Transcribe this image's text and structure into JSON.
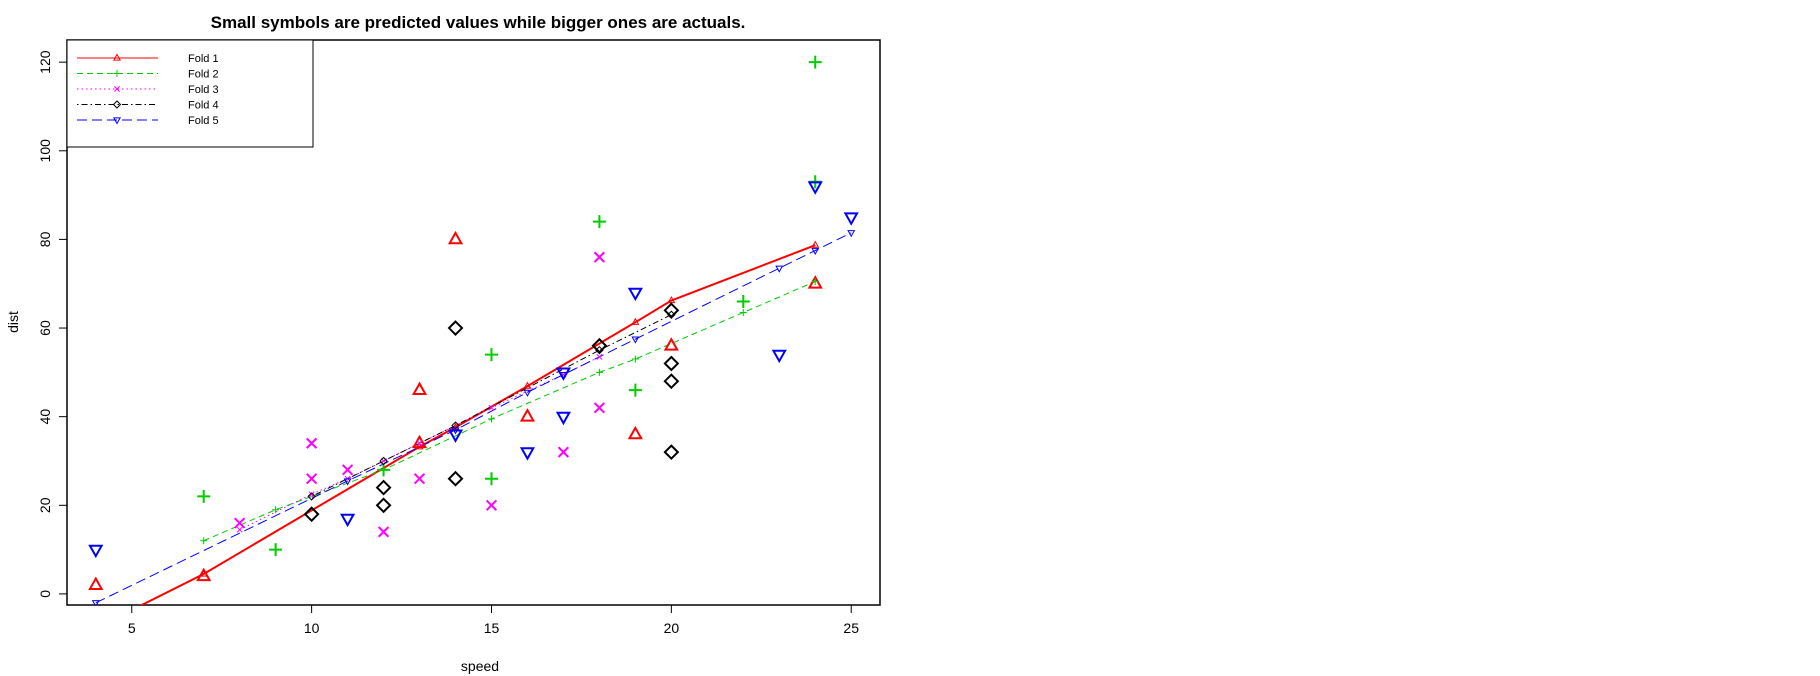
{
  "chart_data": {
    "type": "scatter",
    "title": "Small symbols are predicted values while bigger ones are actuals.",
    "xlabel": "speed",
    "ylabel": "dist",
    "xlim": [
      3.2,
      25.8
    ],
    "ylim": [
      -2.5,
      125
    ],
    "x_ticks": [
      5,
      10,
      15,
      20,
      25
    ],
    "y_ticks": [
      0,
      20,
      40,
      60,
      80,
      100,
      120
    ],
    "grid": false,
    "legend_position": "top-left",
    "series": [
      {
        "name": "Fold 1",
        "color": "#ff0000",
        "marker": "triangle-up",
        "line": "solid",
        "predicted": [
          [
            4,
            -7.7
          ],
          [
            7,
            4.5
          ],
          [
            13,
            33.2
          ],
          [
            14,
            37.6
          ],
          [
            16,
            46.9
          ],
          [
            19,
            61.3
          ],
          [
            20,
            66.2
          ],
          [
            24,
            78.7
          ]
        ],
        "actual": [
          [
            4,
            2
          ],
          [
            7,
            4
          ],
          [
            13,
            46
          ],
          [
            13,
            34
          ],
          [
            14,
            80
          ],
          [
            16,
            40
          ],
          [
            19,
            36
          ],
          [
            20,
            56
          ],
          [
            24,
            70
          ]
        ]
      },
      {
        "name": "Fold 2",
        "color": "#00cc00",
        "marker": "plus",
        "line": "dashed",
        "predicted": [
          [
            7,
            12
          ],
          [
            9,
            19
          ],
          [
            12,
            28
          ],
          [
            15,
            39.5
          ],
          [
            18,
            50
          ],
          [
            19,
            53
          ],
          [
            22,
            63.5
          ],
          [
            24,
            70.5
          ]
        ],
        "actual": [
          [
            7,
            22
          ],
          [
            9,
            10
          ],
          [
            12,
            28
          ],
          [
            15,
            54
          ],
          [
            15,
            26
          ],
          [
            18,
            84
          ],
          [
            19,
            46
          ],
          [
            22,
            66
          ],
          [
            24,
            120
          ],
          [
            24,
            93
          ]
        ]
      },
      {
        "name": "Fold 3",
        "color": "#ff00ff",
        "marker": "cross",
        "line": "dotted",
        "predicted": [
          [
            8,
            14.5
          ],
          [
            10,
            22.5
          ],
          [
            11,
            26
          ],
          [
            12,
            30
          ],
          [
            13,
            34
          ],
          [
            15,
            42
          ],
          [
            17,
            49.5
          ],
          [
            18,
            53.5
          ]
        ],
        "actual": [
          [
            8,
            16
          ],
          [
            10,
            34
          ],
          [
            10,
            26
          ],
          [
            11,
            28
          ],
          [
            12,
            14
          ],
          [
            13,
            26
          ],
          [
            15,
            20
          ],
          [
            17,
            32
          ],
          [
            18,
            76
          ],
          [
            18,
            42
          ]
        ]
      },
      {
        "name": "Fold 4",
        "color": "#000000",
        "marker": "diamond",
        "line": "dotdash",
        "predicted": [
          [
            10,
            22
          ],
          [
            12,
            30
          ],
          [
            14,
            38
          ],
          [
            18,
            55
          ],
          [
            20,
            63
          ]
        ],
        "actual": [
          [
            10,
            18
          ],
          [
            12,
            24
          ],
          [
            12,
            20
          ],
          [
            14,
            60
          ],
          [
            14,
            26
          ],
          [
            18,
            56
          ],
          [
            20,
            64
          ],
          [
            20,
            52
          ],
          [
            20,
            48
          ],
          [
            20,
            32
          ]
        ]
      },
      {
        "name": "Fold 5",
        "color": "#0000ff",
        "marker": "triangle-down",
        "line": "longdash",
        "predicted": [
          [
            4,
            -2
          ],
          [
            11,
            25.5
          ],
          [
            14,
            37
          ],
          [
            16,
            45.5
          ],
          [
            17,
            49.5
          ],
          [
            19,
            57.5
          ],
          [
            23,
            73.5
          ],
          [
            24,
            77.5
          ],
          [
            25,
            81.5
          ]
        ],
        "actual": [
          [
            4,
            10
          ],
          [
            11,
            17
          ],
          [
            14,
            36
          ],
          [
            16,
            32
          ],
          [
            17,
            50
          ],
          [
            17,
            40
          ],
          [
            19,
            68
          ],
          [
            23,
            54
          ],
          [
            24,
            92
          ],
          [
            25,
            85
          ]
        ]
      }
    ]
  }
}
